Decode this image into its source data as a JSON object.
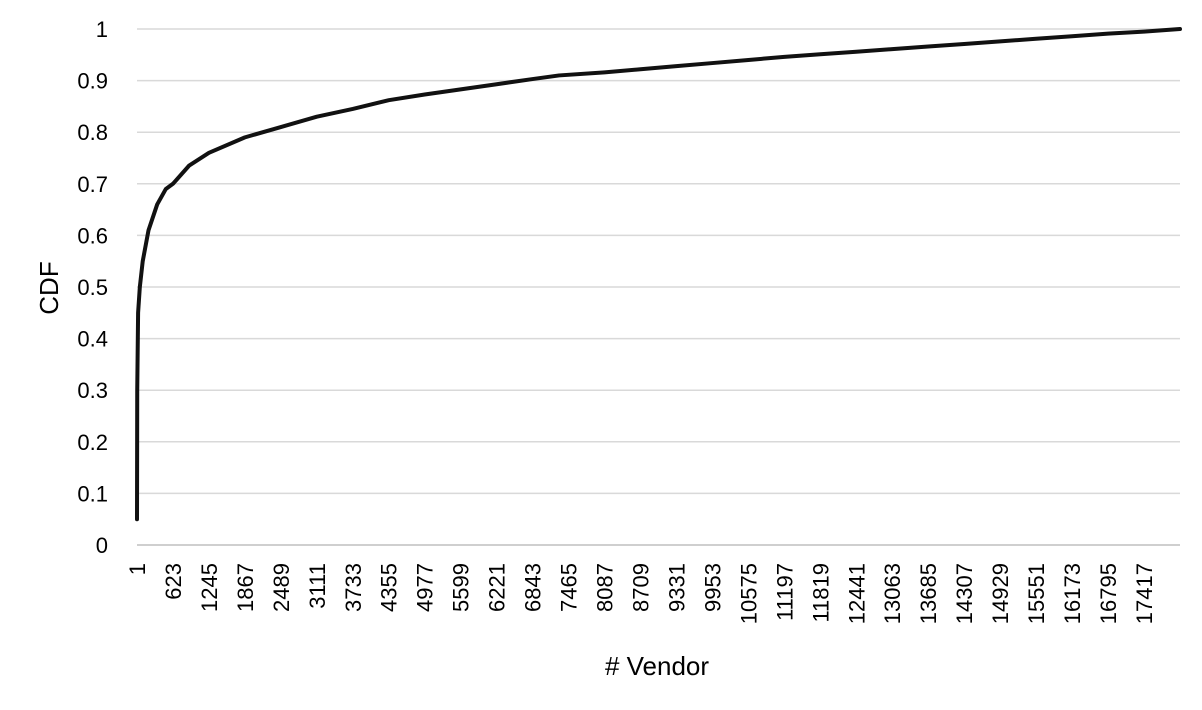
{
  "chart_data": {
    "type": "line",
    "title": "",
    "xlabel": "# Vendor",
    "ylabel": "CDF",
    "x_categories": [
      "1",
      "623",
      "1245",
      "1867",
      "2489",
      "3111",
      "3733",
      "4355",
      "4977",
      "5599",
      "6221",
      "6843",
      "7465",
      "8087",
      "8709",
      "9331",
      "9953",
      "10575",
      "11197",
      "11819",
      "12441",
      "13063",
      "13685",
      "14307",
      "14929",
      "15551",
      "16173",
      "16795",
      "17417"
    ],
    "y_ticks": [
      "0",
      "0.1",
      "0.2",
      "0.3",
      "0.4",
      "0.5",
      "0.6",
      "0.7",
      "0.8",
      "0.9",
      "1"
    ],
    "xlim": [
      1,
      18040
    ],
    "ylim": [
      0,
      1
    ],
    "grid": "horizontal",
    "legend": "none",
    "colors": {
      "line": "#111111",
      "grid": "#d9d9d9"
    },
    "series": [
      {
        "values": [
          [
            1,
            0.05
          ],
          [
            5,
            0.3
          ],
          [
            20,
            0.45
          ],
          [
            50,
            0.5
          ],
          [
            100,
            0.55
          ],
          [
            200,
            0.61
          ],
          [
            350,
            0.66
          ],
          [
            500,
            0.69
          ],
          [
            623,
            0.7
          ],
          [
            900,
            0.735
          ],
          [
            1245,
            0.76
          ],
          [
            1867,
            0.79
          ],
          [
            2489,
            0.81
          ],
          [
            3111,
            0.83
          ],
          [
            3733,
            0.845
          ],
          [
            4355,
            0.862
          ],
          [
            4977,
            0.873
          ],
          [
            5599,
            0.883
          ],
          [
            6221,
            0.893
          ],
          [
            6843,
            0.903
          ],
          [
            7300,
            0.91
          ],
          [
            8087,
            0.916
          ],
          [
            8709,
            0.922
          ],
          [
            9331,
            0.928
          ],
          [
            9953,
            0.934
          ],
          [
            10575,
            0.94
          ],
          [
            11197,
            0.946
          ],
          [
            11819,
            0.951
          ],
          [
            12441,
            0.956
          ],
          [
            13063,
            0.961
          ],
          [
            13685,
            0.966
          ],
          [
            14307,
            0.971
          ],
          [
            14929,
            0.976
          ],
          [
            15551,
            0.981
          ],
          [
            16173,
            0.986
          ],
          [
            16795,
            0.991
          ],
          [
            17417,
            0.995
          ],
          [
            18040,
            1.0
          ]
        ]
      }
    ]
  }
}
